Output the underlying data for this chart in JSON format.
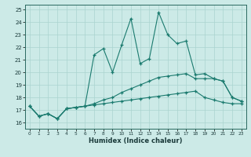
{
  "xlabel": "Humidex (Indice chaleur)",
  "x_values": [
    0,
    1,
    2,
    3,
    4,
    5,
    6,
    7,
    8,
    9,
    10,
    11,
    12,
    13,
    14,
    15,
    16,
    17,
    18,
    19,
    20,
    21,
    22,
    23
  ],
  "line_main": [
    17.3,
    16.5,
    16.7,
    16.3,
    17.1,
    17.2,
    17.3,
    21.4,
    21.9,
    20.0,
    22.2,
    24.3,
    20.7,
    21.1,
    24.8,
    23.0,
    22.3,
    22.5,
    19.8,
    19.9,
    19.5,
    19.3,
    18.0,
    17.7
  ],
  "line_mid": [
    17.3,
    16.5,
    16.7,
    16.3,
    17.1,
    17.2,
    17.3,
    17.5,
    17.8,
    18.0,
    18.4,
    18.7,
    19.0,
    19.3,
    19.6,
    19.7,
    19.8,
    19.9,
    19.5,
    19.5,
    19.5,
    19.3,
    18.0,
    17.7
  ],
  "line_low": [
    17.3,
    16.5,
    16.7,
    16.3,
    17.1,
    17.2,
    17.3,
    17.4,
    17.5,
    17.6,
    17.7,
    17.8,
    17.9,
    18.0,
    18.1,
    18.2,
    18.3,
    18.4,
    18.5,
    18.0,
    17.8,
    17.6,
    17.5,
    17.5
  ],
  "ylim": [
    15.5,
    25.4
  ],
  "yticks": [
    16,
    17,
    18,
    19,
    20,
    21,
    22,
    23,
    24,
    25
  ],
  "line_color": "#1a7a6e",
  "bg_color": "#cceae7",
  "grid_color": "#aad4d0",
  "spine_color": "#2a6a60"
}
